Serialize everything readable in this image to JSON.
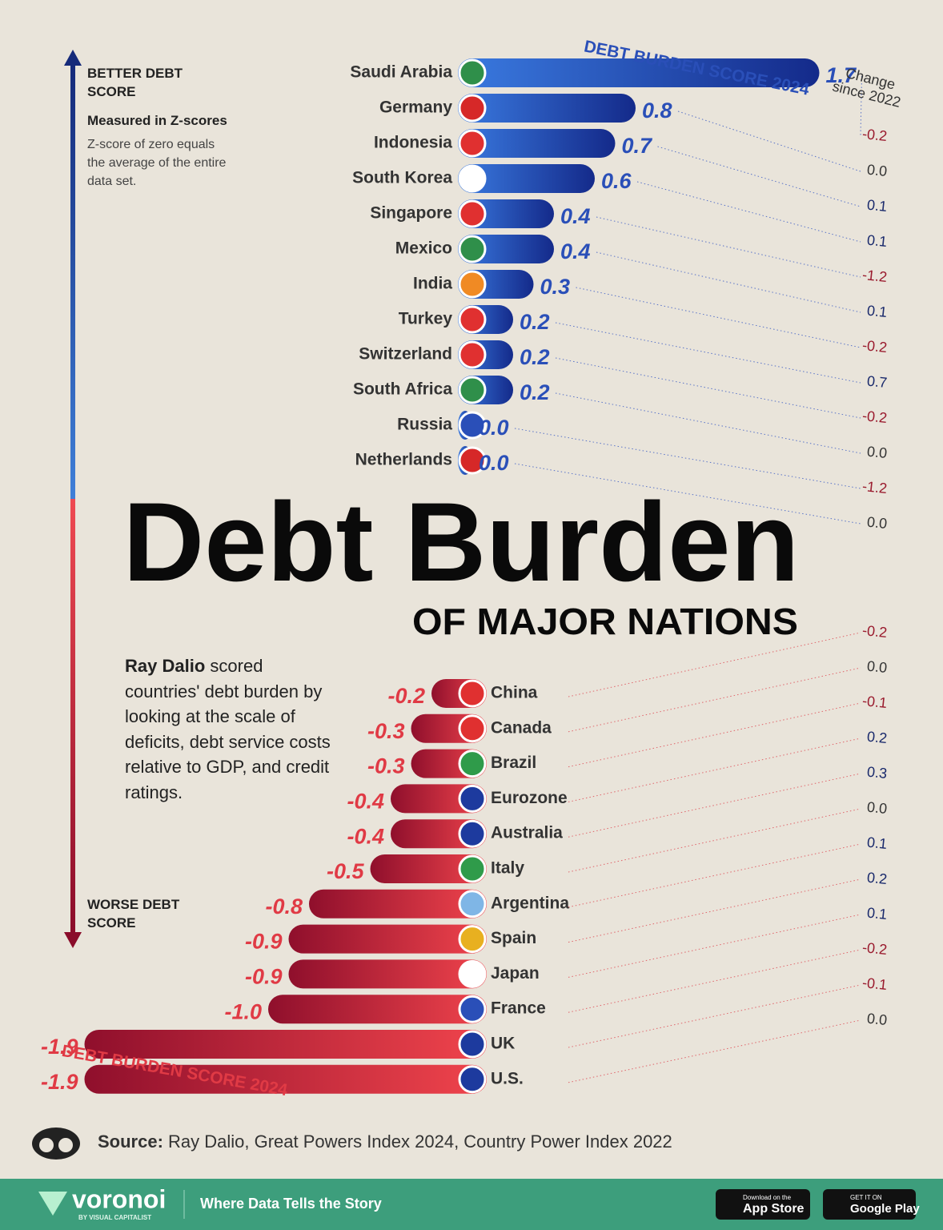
{
  "header": {
    "title": "Debt Burden",
    "subtitle": "OF MAJOR NATIONS"
  },
  "axis": {
    "top_label": "BETTER DEBT SCORE",
    "unit_label": "Measured in Z-scores",
    "unit_note": "Z-score of zero equals the average of the entire data set.",
    "bottom_label": "WORSE DEBT SCORE"
  },
  "note": {
    "bold": "Ray Dalio",
    "text": "scored countries' debt burden by looking at the scale of deficits, debt service costs relative to GDP, and credit ratings."
  },
  "source": {
    "label": "Source:",
    "text": "Ray Dalio, Great Powers Index 2024, Country Power Index 2022"
  },
  "footer": {
    "brand": "voronoi",
    "brand_sub": "BY VISUAL CAPITALIST",
    "tagline": "Where Data Tells the Story",
    "app_store_small": "Download on the",
    "app_store": "App Store",
    "google_small": "GET IT ON",
    "google": "Google Play"
  },
  "chart_data": [
    {
      "type": "bar",
      "categories": [
        "Saudi Arabia",
        "Germany",
        "Indonesia",
        "South Korea",
        "Singapore",
        "Mexico",
        "India",
        "Turkey",
        "Switzerland",
        "South Africa",
        "Russia",
        "Netherlands"
      ],
      "series": [
        {
          "name": "DEBT BURDEN SCORE 2024",
          "color": "#2b55c4",
          "values": [
            1.7,
            0.8,
            0.7,
            0.6,
            0.4,
            0.4,
            0.3,
            0.2,
            0.2,
            0.2,
            0,
            0
          ],
          "value_labels": [
            "1.7",
            "0.8",
            "0.7",
            "0.6",
            "0.4",
            "0.4",
            "0.3",
            "0.2",
            "0.2",
            "0.2",
            "0.0",
            "0.0"
          ]
        },
        {
          "name": "Change since 2022",
          "values": [
            -0.2,
            0,
            0.1,
            0.1,
            -1.2,
            0.1,
            -0.2,
            0.7,
            -0.2,
            0,
            -1.2,
            0
          ],
          "value_labels": [
            "-0.2",
            "0.0",
            "0.1",
            "0.1",
            "-1.2",
            "0.1",
            "-0.2",
            "0.7",
            "-0.2",
            "0.0",
            "-1.2",
            "0.0"
          ]
        }
      ]
    },
    {
      "type": "bar",
      "categories": [
        "China",
        "Canada",
        "Brazil",
        "Eurozone",
        "Australia",
        "Italy",
        "Argentina",
        "Spain",
        "Japan",
        "France",
        "UK",
        "U.S."
      ],
      "series": [
        {
          "name": "DEBT BURDEN SCORE 2024",
          "color": "#e8404a",
          "values": [
            -0.2,
            -0.3,
            -0.3,
            -0.4,
            -0.4,
            -0.5,
            -0.8,
            -0.9,
            -0.9,
            -1,
            -1.9,
            -1.9
          ],
          "value_labels": [
            "-0.2",
            "-0.3",
            "-0.3",
            "-0.4",
            "-0.4",
            "-0.5",
            "-0.8",
            "-0.9",
            "-0.9",
            "-1.0",
            "-1.9",
            "-1.9"
          ]
        },
        {
          "values": [
            -0.2,
            0,
            -0.1,
            0.2,
            0.3,
            0,
            0.1,
            0.2,
            0.1,
            -0.2,
            -0.1,
            0
          ],
          "value_labels": [
            "-0.2",
            "0.0",
            "-0.1",
            "0.2",
            "0.3",
            "0.0",
            "0.1",
            "0.2",
            "0.1",
            "-0.2",
            "-0.1",
            "0.0"
          ]
        }
      ]
    }
  ]
}
